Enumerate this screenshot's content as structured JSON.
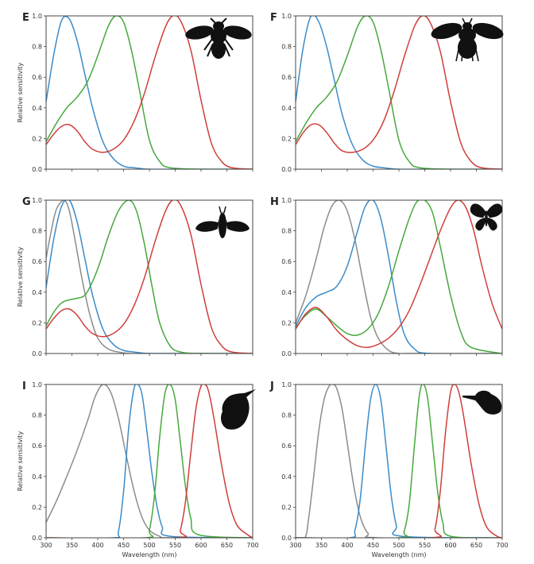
{
  "colors": {
    "UV": "#3b8bc9",
    "blue": "#3b8bc9",
    "green": "#46a83d",
    "red": "#cf3e3b",
    "gray": "#8c8c8c"
  },
  "chart_data": [
    {
      "type": "line",
      "panel": "E",
      "silhouette": "bee-icon",
      "xlabel": "",
      "ylabel": "Relative sensitivity",
      "xlim": [
        300,
        700
      ],
      "ylim": [
        0,
        1
      ],
      "xticks": [],
      "yticks": [
        "0.0",
        "0.2",
        "0.4",
        "0.6",
        "0.8",
        "1.0"
      ],
      "series": [
        {
          "color": "blue",
          "x": [
            300,
            315,
            330,
            345,
            360,
            375,
            390,
            410,
            430,
            450,
            470,
            500,
            550,
            700
          ],
          "y": [
            0.44,
            0.75,
            0.97,
            0.98,
            0.84,
            0.62,
            0.4,
            0.18,
            0.07,
            0.02,
            0.01,
            0,
            0,
            0
          ]
        },
        {
          "color": "green",
          "x": [
            300,
            320,
            340,
            360,
            380,
            400,
            420,
            435,
            450,
            465,
            480,
            500,
            520,
            540,
            600,
            700
          ],
          "y": [
            0.18,
            0.3,
            0.4,
            0.47,
            0.57,
            0.74,
            0.93,
            1.0,
            0.96,
            0.78,
            0.53,
            0.19,
            0.05,
            0.01,
            0,
            0
          ]
        },
        {
          "color": "red",
          "x": [
            300,
            315,
            330,
            345,
            360,
            375,
            390,
            410,
            430,
            450,
            470,
            490,
            510,
            530,
            545,
            560,
            580,
            600,
            620,
            640,
            660,
            700
          ],
          "y": [
            0.16,
            0.23,
            0.28,
            0.29,
            0.25,
            0.18,
            0.13,
            0.11,
            0.13,
            0.19,
            0.31,
            0.49,
            0.72,
            0.92,
            1.0,
            0.97,
            0.78,
            0.45,
            0.17,
            0.05,
            0.01,
            0
          ]
        }
      ]
    },
    {
      "type": "line",
      "panel": "F",
      "silhouette": "beetle-icon",
      "xlabel": "",
      "ylabel": "",
      "xlim": [
        300,
        700
      ],
      "ylim": [
        0,
        1
      ],
      "xticks": [],
      "yticks": [
        "0.0",
        "0.2",
        "0.4",
        "0.6",
        "0.8",
        "1.0"
      ],
      "series": [
        {
          "color": "blue",
          "x": [
            300,
            315,
            330,
            345,
            360,
            375,
            390,
            410,
            430,
            450,
            470,
            500,
            550,
            700
          ],
          "y": [
            0.44,
            0.8,
            1.0,
            0.96,
            0.8,
            0.58,
            0.36,
            0.16,
            0.06,
            0.02,
            0.01,
            0,
            0,
            0
          ]
        },
        {
          "color": "green",
          "x": [
            300,
            320,
            340,
            360,
            380,
            400,
            420,
            435,
            450,
            465,
            480,
            500,
            520,
            540,
            600,
            700
          ],
          "y": [
            0.18,
            0.3,
            0.4,
            0.47,
            0.57,
            0.74,
            0.93,
            1.0,
            0.96,
            0.78,
            0.53,
            0.19,
            0.05,
            0.01,
            0,
            0
          ]
        },
        {
          "color": "red",
          "x": [
            300,
            315,
            330,
            345,
            360,
            375,
            390,
            410,
            430,
            450,
            470,
            490,
            510,
            530,
            545,
            560,
            580,
            600,
            620,
            640,
            660,
            700
          ],
          "y": [
            0.16,
            0.24,
            0.29,
            0.29,
            0.24,
            0.17,
            0.12,
            0.11,
            0.13,
            0.19,
            0.31,
            0.5,
            0.73,
            0.93,
            1.0,
            0.96,
            0.77,
            0.44,
            0.17,
            0.05,
            0.01,
            0
          ]
        }
      ]
    },
    {
      "type": "line",
      "panel": "G",
      "silhouette": "moth-icon",
      "xlabel": "",
      "ylabel": "Relative sensitivity",
      "xlim": [
        300,
        700
      ],
      "ylim": [
        0,
        1
      ],
      "xticks": [],
      "yticks": [
        "0.0",
        "0.2",
        "0.4",
        "0.6",
        "0.8",
        "1.0"
      ],
      "series": [
        {
          "color": "gray",
          "x": [
            300,
            310,
            320,
            335,
            345,
            355,
            370,
            385,
            400,
            420,
            440,
            460,
            500,
            700
          ],
          "y": [
            0.62,
            0.8,
            0.94,
            1.0,
            0.93,
            0.76,
            0.48,
            0.25,
            0.1,
            0.03,
            0.01,
            0,
            0,
            0
          ]
        },
        {
          "color": "blue",
          "x": [
            300,
            315,
            330,
            345,
            360,
            375,
            390,
            410,
            430,
            450,
            470,
            500,
            550,
            700
          ],
          "y": [
            0.43,
            0.75,
            0.96,
            1.0,
            0.86,
            0.62,
            0.38,
            0.16,
            0.06,
            0.02,
            0.01,
            0,
            0,
            0
          ]
        },
        {
          "color": "green",
          "x": [
            300,
            315,
            330,
            345,
            360,
            375,
            390,
            405,
            420,
            440,
            460,
            475,
            490,
            505,
            520,
            540,
            560,
            600,
            700
          ],
          "y": [
            0.18,
            0.27,
            0.33,
            0.35,
            0.36,
            0.38,
            0.47,
            0.6,
            0.76,
            0.93,
            1.0,
            0.93,
            0.72,
            0.44,
            0.2,
            0.05,
            0.01,
            0,
            0
          ]
        },
        {
          "color": "red",
          "x": [
            300,
            315,
            330,
            345,
            360,
            375,
            390,
            410,
            430,
            450,
            470,
            490,
            510,
            530,
            545,
            560,
            580,
            600,
            620,
            640,
            660,
            700
          ],
          "y": [
            0.16,
            0.23,
            0.28,
            0.29,
            0.25,
            0.18,
            0.13,
            0.11,
            0.13,
            0.19,
            0.31,
            0.49,
            0.72,
            0.92,
            1.0,
            0.97,
            0.78,
            0.45,
            0.17,
            0.05,
            0.01,
            0
          ]
        }
      ]
    },
    {
      "type": "line",
      "panel": "H",
      "silhouette": "butterfly-icon",
      "xlabel": "",
      "ylabel": "",
      "xlim": [
        300,
        700
      ],
      "ylim": [
        0,
        1
      ],
      "xticks": [],
      "yticks": [
        "0.0",
        "0.2",
        "0.4",
        "0.6",
        "0.8",
        "1.0"
      ],
      "series": [
        {
          "color": "gray",
          "x": [
            300,
            320,
            340,
            355,
            370,
            385,
            400,
            415,
            430,
            445,
            460,
            480,
            500,
            520,
            600,
            700
          ],
          "y": [
            0.2,
            0.38,
            0.62,
            0.82,
            0.96,
            1.0,
            0.93,
            0.74,
            0.48,
            0.24,
            0.1,
            0.02,
            0,
            0,
            0,
            0
          ]
        },
        {
          "color": "blue",
          "x": [
            300,
            320,
            340,
            360,
            380,
            400,
            420,
            435,
            450,
            465,
            480,
            495,
            510,
            530,
            560,
            700
          ],
          "y": [
            0.18,
            0.3,
            0.37,
            0.4,
            0.44,
            0.57,
            0.8,
            0.96,
            1.0,
            0.88,
            0.63,
            0.34,
            0.13,
            0.03,
            0,
            0
          ]
        },
        {
          "color": "green",
          "x": [
            300,
            320,
            340,
            360,
            380,
            400,
            420,
            440,
            460,
            480,
            500,
            520,
            535,
            550,
            565,
            580,
            600,
            620,
            640,
            700
          ],
          "y": [
            0.17,
            0.25,
            0.29,
            0.24,
            0.18,
            0.13,
            0.12,
            0.16,
            0.26,
            0.44,
            0.67,
            0.88,
            0.99,
            1.0,
            0.92,
            0.7,
            0.38,
            0.14,
            0.04,
            0
          ]
        },
        {
          "color": "red",
          "x": [
            300,
            320,
            340,
            360,
            380,
            400,
            420,
            440,
            460,
            480,
            500,
            520,
            540,
            560,
            580,
            600,
            615,
            630,
            645,
            660,
            680,
            700
          ],
          "y": [
            0.16,
            0.26,
            0.3,
            0.24,
            0.15,
            0.09,
            0.05,
            0.04,
            0.06,
            0.1,
            0.17,
            0.28,
            0.44,
            0.62,
            0.8,
            0.95,
            1.0,
            0.95,
            0.8,
            0.58,
            0.33,
            0.16
          ]
        }
      ]
    },
    {
      "type": "line",
      "panel": "I",
      "silhouette": "hummingbird-icon",
      "xlabel": "Wavelength (nm)",
      "ylabel": "Relative sensitivity",
      "xlim": [
        300,
        700
      ],
      "ylim": [
        0,
        1
      ],
      "xticks": [
        "300",
        "350",
        "400",
        "450",
        "500",
        "550",
        "600",
        "650",
        "700"
      ],
      "yticks": [
        "0.0",
        "0.2",
        "0.4",
        "0.6",
        "0.8",
        "1.0"
      ],
      "series": [
        {
          "color": "gray",
          "x": [
            300,
            320,
            340,
            360,
            380,
            395,
            410,
            425,
            440,
            455,
            470,
            485,
            500,
            520,
            540,
            700
          ],
          "y": [
            0.1,
            0.24,
            0.4,
            0.57,
            0.76,
            0.92,
            1.0,
            0.95,
            0.78,
            0.54,
            0.31,
            0.14,
            0.05,
            0.01,
            0,
            0
          ]
        },
        {
          "color": "blue",
          "x": [
            300,
            430,
            440,
            450,
            460,
            470,
            478,
            486,
            495,
            505,
            515,
            525,
            540,
            700
          ],
          "y": [
            0,
            0,
            0.04,
            0.3,
            0.72,
            0.97,
            1.0,
            0.93,
            0.7,
            0.42,
            0.2,
            0.07,
            0.01,
            0
          ]
        },
        {
          "color": "green",
          "x": [
            300,
            490,
            500,
            510,
            520,
            530,
            540,
            550,
            560,
            570,
            580,
            595,
            700
          ],
          "y": [
            0,
            0,
            0.05,
            0.28,
            0.66,
            0.94,
            1.0,
            0.9,
            0.62,
            0.33,
            0.13,
            0.02,
            0
          ]
        },
        {
          "color": "red",
          "x": [
            300,
            550,
            560,
            570,
            580,
            590,
            600,
            608,
            615,
            625,
            640,
            655,
            670,
            690,
            700
          ],
          "y": [
            0,
            0,
            0.05,
            0.24,
            0.55,
            0.84,
            0.99,
            1.0,
            0.95,
            0.78,
            0.47,
            0.22,
            0.08,
            0.02,
            0
          ]
        }
      ]
    },
    {
      "type": "line",
      "panel": "J",
      "silhouette": "bird-icon",
      "xlabel": "Wavelength (nm)",
      "ylabel": "",
      "xlim": [
        300,
        700
      ],
      "ylim": [
        0,
        1
      ],
      "xticks": [
        "300",
        "350",
        "400",
        "450",
        "500",
        "550",
        "600",
        "650",
        "700"
      ],
      "yticks": [
        "0.0",
        "0.2",
        "0.4",
        "0.6",
        "0.8",
        "1.0"
      ],
      "series": [
        {
          "color": "gray",
          "x": [
            300,
            318,
            325,
            335,
            345,
            355,
            365,
            373,
            380,
            390,
            400,
            412,
            425,
            440,
            460,
            700
          ],
          "y": [
            0,
            0,
            0.12,
            0.4,
            0.7,
            0.9,
            0.99,
            1.0,
            0.97,
            0.84,
            0.62,
            0.35,
            0.14,
            0.03,
            0,
            0
          ]
        },
        {
          "color": "blue",
          "x": [
            300,
            405,
            415,
            425,
            435,
            445,
            455,
            465,
            475,
            485,
            495,
            505,
            700
          ],
          "y": [
            0,
            0,
            0.05,
            0.25,
            0.6,
            0.9,
            1.0,
            0.9,
            0.6,
            0.28,
            0.08,
            0.01,
            0
          ]
        },
        {
          "color": "green",
          "x": [
            300,
            500,
            510,
            520,
            530,
            540,
            548,
            556,
            565,
            575,
            585,
            600,
            700
          ],
          "y": [
            0,
            0,
            0.04,
            0.22,
            0.6,
            0.94,
            1.0,
            0.9,
            0.62,
            0.3,
            0.1,
            0.01,
            0
          ]
        },
        {
          "color": "red",
          "x": [
            300,
            560,
            570,
            580,
            590,
            600,
            608,
            616,
            625,
            640,
            655,
            670,
            690,
            700
          ],
          "y": [
            0,
            0,
            0.06,
            0.3,
            0.68,
            0.95,
            1.0,
            0.95,
            0.8,
            0.48,
            0.22,
            0.07,
            0.01,
            0
          ]
        }
      ]
    }
  ]
}
